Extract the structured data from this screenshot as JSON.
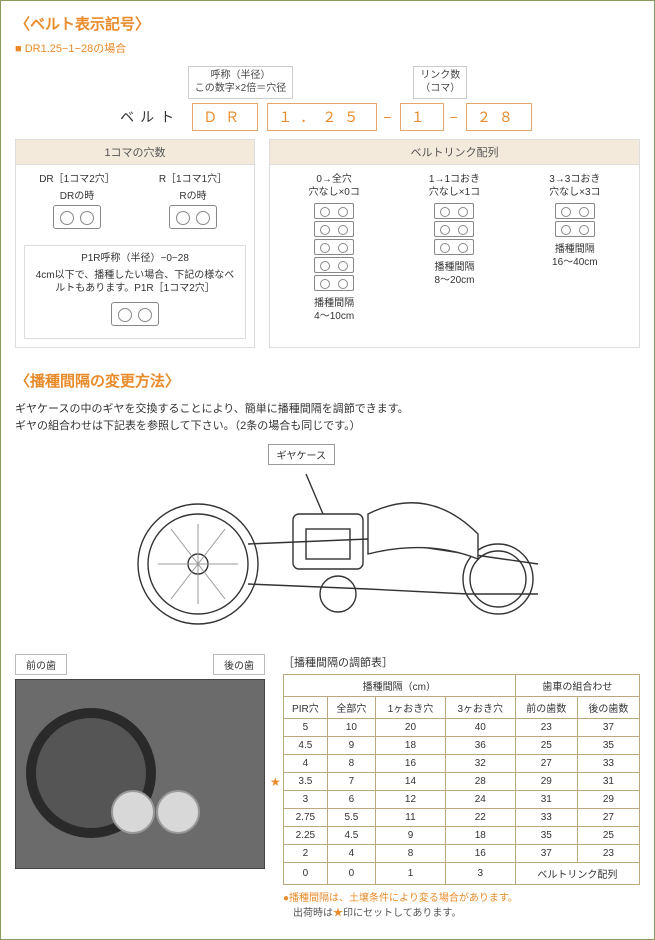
{
  "section1": {
    "title": "〈ベルト表示記号〉",
    "example_label": "■ DR1.25−1−28の場合",
    "code_label": "ベルト",
    "segments": {
      "a": "ＤＲ",
      "b": "１．２５",
      "c": "１",
      "d": "２８"
    },
    "top_annots": {
      "center": "呼称（半径）\nこの数字×2倍＝穴径",
      "right": "リンク数\n（コマ）"
    },
    "panel_left": {
      "header": "1コマの穴数",
      "dr": {
        "t1": "DR［1コマ2穴］",
        "t2": "DRの時"
      },
      "r": {
        "t1": "R［1コマ1穴］",
        "t2": "Rの時"
      },
      "p1r": {
        "title": "P1R呼称（半径）−0−28",
        "note": "4cm以下で、播種したい場合、下記の様なベルトもあります。P1R［1コマ2穴］"
      }
    },
    "panel_right": {
      "header": "ベルトリンク配列",
      "cols": [
        {
          "t1": "0→全穴",
          "t2": "穴なし×0コ",
          "units": 5,
          "s1": "播種間隔",
          "s2": "4〜10cm"
        },
        {
          "t1": "1→1コおき",
          "t2": "穴なし×1コ",
          "units": 3,
          "s1": "播種間隔",
          "s2": "8〜20cm"
        },
        {
          "t1": "3→3コおき",
          "t2": "穴なし×3コ",
          "units": 2,
          "s1": "播種間隔",
          "s2": "16〜40cm"
        }
      ]
    }
  },
  "section2": {
    "title": "〈播種間隔の変更方法〉",
    "desc1": "ギヤケースの中のギヤを交換することにより、簡単に播種間隔を調節できます。",
    "desc2": "ギヤの組合わせは下記表を参照して下さい。（2条の場合も同じです。）",
    "gear_case_label": "ギヤケース",
    "front_gear": "前の歯",
    "rear_gear": "後の歯",
    "table_title": "［播種間隔の調節表］",
    "table": {
      "group1": "播種間隔（cm）",
      "group2": "歯車の組合わせ",
      "headers": [
        "PIR穴",
        "全部穴",
        "1ヶおき穴",
        "3ヶおき穴",
        "前の歯数",
        "後の歯数"
      ],
      "rows": [
        [
          "5",
          "10",
          "20",
          "40",
          "23",
          "37"
        ],
        [
          "4.5",
          "9",
          "18",
          "36",
          "25",
          "35"
        ],
        [
          "4",
          "8",
          "16",
          "32",
          "27",
          "33"
        ],
        [
          "3.5",
          "7",
          "14",
          "28",
          "29",
          "31"
        ],
        [
          "3",
          "6",
          "12",
          "24",
          "31",
          "29"
        ],
        [
          "2.75",
          "5.5",
          "11",
          "22",
          "33",
          "27"
        ],
        [
          "2.25",
          "4.5",
          "9",
          "18",
          "35",
          "25"
        ],
        [
          "2",
          "4",
          "8",
          "16",
          "37",
          "23"
        ],
        [
          "0",
          "0",
          "1",
          "3",
          "ベルトリンク配列",
          ""
        ]
      ],
      "star_row_index": 3
    },
    "footnote1": "●播種間隔は、土壌条件により変る場合があります。",
    "footnote2": "出荷時は★印にセットしてあります。"
  },
  "colors": {
    "accent": "#e98b2a",
    "border": "#8a9a5b"
  }
}
